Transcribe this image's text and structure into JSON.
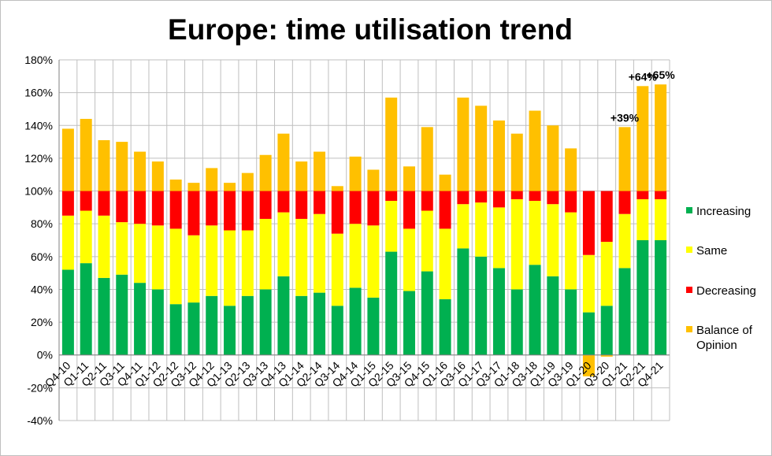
{
  "chart_data": {
    "type": "bar",
    "stacked": true,
    "title": "Europe: time utilisation trend",
    "xlabel": "",
    "ylabel": "",
    "ylim": [
      -40,
      180
    ],
    "ytick_step": 20,
    "ytick_suffix": "%",
    "grid": true,
    "legend_position": "right",
    "categories": [
      "Q4-10",
      "Q1-11",
      "Q2-11",
      "Q3-11",
      "Q4-11",
      "Q1-12",
      "Q2-12",
      "Q3-12",
      "Q4-12",
      "Q1-13",
      "Q2-13",
      "Q3-13",
      "Q4-13",
      "Q1-14",
      "Q2-14",
      "Q3-14",
      "Q4-14",
      "Q1-15",
      "Q2-15",
      "Q3-15",
      "Q4-15",
      "Q1-16",
      "Q3-16",
      "Q1-17",
      "Q3-17",
      "Q1-18",
      "Q3-18",
      "Q1-19",
      "Q3-19",
      "Q1-20",
      "Q3-20",
      "Q1-21",
      "Q2-21",
      "Q4-21"
    ],
    "series": [
      {
        "name": "Increasing",
        "color": "#00b050",
        "values": [
          52,
          56,
          47,
          49,
          44,
          40,
          31,
          32,
          36,
          30,
          36,
          40,
          48,
          36,
          38,
          30,
          41,
          35,
          63,
          39,
          51,
          34,
          65,
          60,
          53,
          40,
          55,
          48,
          40,
          26,
          30,
          53,
          70,
          70
        ]
      },
      {
        "name": "Same",
        "color": "#ffff00",
        "values": [
          33,
          32,
          38,
          32,
          36,
          39,
          46,
          41,
          43,
          46,
          40,
          43,
          39,
          47,
          48,
          44,
          39,
          44,
          31,
          38,
          37,
          43,
          27,
          33,
          37,
          55,
          39,
          44,
          47,
          35,
          39,
          33,
          25,
          25
        ]
      },
      {
        "name": "Decreasing",
        "color": "#ff0000",
        "values": [
          15,
          12,
          15,
          19,
          20,
          21,
          23,
          27,
          21,
          24,
          24,
          17,
          13,
          17,
          14,
          26,
          20,
          21,
          6,
          23,
          12,
          23,
          8,
          7,
          10,
          5,
          6,
          8,
          13,
          39,
          31,
          14,
          5,
          5
        ]
      },
      {
        "name": "Balance of Opinion",
        "color": "#ffc000",
        "stack": "separate",
        "values": [
          38,
          44,
          31,
          30,
          24,
          18,
          7,
          5,
          14,
          5,
          11,
          22,
          35,
          18,
          24,
          3,
          21,
          13,
          57,
          15,
          39,
          10,
          57,
          52,
          43,
          35,
          49,
          40,
          26,
          -13,
          -1,
          39,
          64,
          65
        ]
      }
    ],
    "annotations": [
      {
        "category": "Q1-21",
        "text": "+39%"
      },
      {
        "category": "Q2-21",
        "text": "+64%"
      },
      {
        "category": "Q4-21",
        "text": "+65%"
      }
    ]
  }
}
